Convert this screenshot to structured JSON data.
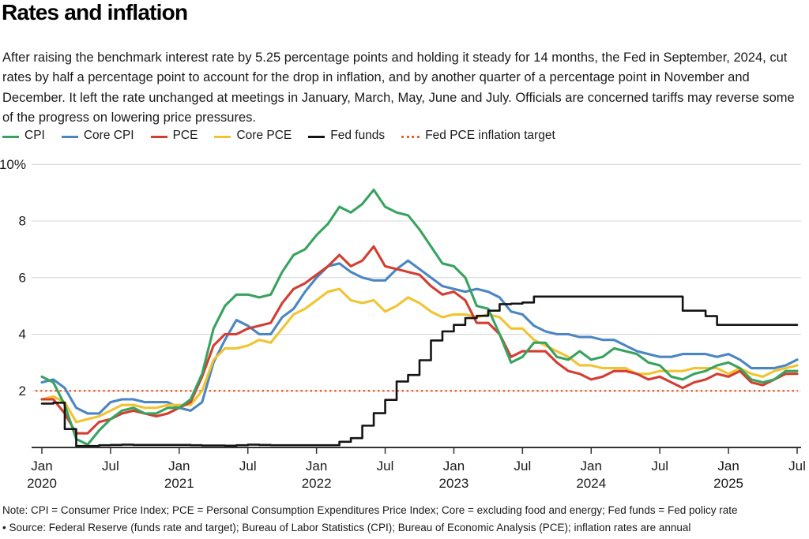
{
  "header": {
    "title": "Rates and inflation",
    "description": "After raising the benchmark interest rate by 5.25 percentage points and holding it steady for 14 months, the Fed in September, 2024, cut rates by half a percentage point to account for the drop in inflation, and by another quarter of a percentage point in November and December. It left the rate unchanged at meetings in January, March, May, June and July. Officials are concerned tariffs may reverse some of the progress on lowering price pressures."
  },
  "chart_data": {
    "type": "line",
    "x_unit": "month",
    "x_start": "Jan 2020",
    "x_end": "Jul 2025",
    "n_points": 67,
    "ylim": [
      0,
      10
    ],
    "grid": true,
    "legend_position": "top",
    "colors": {
      "grid": "#d4d4d4",
      "axis": "#1a1a1a",
      "tick_label": "#1a1a1a"
    },
    "y_ticks": [
      {
        "value": 10,
        "label": "10%"
      },
      {
        "value": 8,
        "label": "8"
      },
      {
        "value": 6,
        "label": "6"
      },
      {
        "value": 4,
        "label": "4"
      },
      {
        "value": 2,
        "label": "2"
      }
    ],
    "x_ticks": [
      {
        "index": 0,
        "month": "Jan",
        "year": "2020"
      },
      {
        "index": 6,
        "month": "Jul",
        "year": ""
      },
      {
        "index": 12,
        "month": "Jan",
        "year": "2021"
      },
      {
        "index": 18,
        "month": "Jul",
        "year": ""
      },
      {
        "index": 24,
        "month": "Jan",
        "year": "2022"
      },
      {
        "index": 30,
        "month": "Jul",
        "year": ""
      },
      {
        "index": 36,
        "month": "Jan",
        "year": "2023"
      },
      {
        "index": 42,
        "month": "Jul",
        "year": ""
      },
      {
        "index": 48,
        "month": "Jan",
        "year": "2024"
      },
      {
        "index": 54,
        "month": "Jul",
        "year": ""
      },
      {
        "index": 60,
        "month": "Jan",
        "year": "2025"
      },
      {
        "index": 66,
        "month": "Jul",
        "year": ""
      }
    ],
    "target_line": {
      "label": "Fed PCE inflation target",
      "value": 2,
      "color": "#e8622d",
      "style": "dotted"
    },
    "series": [
      {
        "name": "CPI",
        "color": "#37a35e",
        "style": "solid",
        "values": [
          2.5,
          2.3,
          1.5,
          0.3,
          0.1,
          0.6,
          1.0,
          1.3,
          1.4,
          1.2,
          1.2,
          1.4,
          1.4,
          1.7,
          2.6,
          4.2,
          5.0,
          5.4,
          5.4,
          5.3,
          5.4,
          6.2,
          6.8,
          7.0,
          7.5,
          7.9,
          8.5,
          8.3,
          8.6,
          9.1,
          8.5,
          8.3,
          8.2,
          7.7,
          7.1,
          6.5,
          6.4,
          6.0,
          5.0,
          4.9,
          4.0,
          3.0,
          3.2,
          3.7,
          3.7,
          3.2,
          3.1,
          3.4,
          3.1,
          3.2,
          3.5,
          3.4,
          3.3,
          3.0,
          2.9,
          2.5,
          2.4,
          2.6,
          2.7,
          2.9,
          3.0,
          2.8,
          2.4,
          2.3,
          2.4,
          2.7,
          2.7
        ]
      },
      {
        "name": "Core CPI",
        "color": "#4a86c4",
        "style": "solid",
        "values": [
          2.3,
          2.4,
          2.1,
          1.4,
          1.2,
          1.2,
          1.6,
          1.7,
          1.7,
          1.6,
          1.6,
          1.6,
          1.4,
          1.3,
          1.6,
          3.0,
          3.8,
          4.5,
          4.3,
          4.0,
          4.0,
          4.6,
          4.9,
          5.5,
          6.0,
          6.4,
          6.5,
          6.2,
          6.0,
          5.9,
          5.9,
          6.3,
          6.6,
          6.3,
          6.0,
          5.7,
          5.6,
          5.5,
          5.6,
          5.5,
          5.3,
          4.8,
          4.7,
          4.3,
          4.1,
          4.0,
          4.0,
          3.9,
          3.9,
          3.8,
          3.8,
          3.6,
          3.4,
          3.3,
          3.2,
          3.2,
          3.3,
          3.3,
          3.3,
          3.2,
          3.3,
          3.1,
          2.8,
          2.8,
          2.8,
          2.9,
          3.1
        ]
      },
      {
        "name": "PCE",
        "color": "#d43d30",
        "style": "solid",
        "values": [
          1.7,
          1.7,
          1.2,
          0.5,
          0.5,
          0.9,
          1.0,
          1.2,
          1.3,
          1.2,
          1.1,
          1.2,
          1.4,
          1.6,
          2.5,
          3.6,
          4.0,
          4.0,
          4.2,
          4.3,
          4.4,
          5.1,
          5.6,
          5.8,
          6.1,
          6.4,
          6.8,
          6.4,
          6.6,
          7.1,
          6.4,
          6.3,
          6.2,
          6.1,
          5.7,
          5.4,
          5.5,
          5.2,
          4.4,
          4.4,
          4.0,
          3.2,
          3.4,
          3.4,
          3.4,
          3.0,
          2.7,
          2.6,
          2.4,
          2.5,
          2.7,
          2.7,
          2.6,
          2.4,
          2.5,
          2.3,
          2.1,
          2.3,
          2.4,
          2.6,
          2.5,
          2.7,
          2.3,
          2.2,
          2.4,
          2.6,
          2.6
        ]
      },
      {
        "name": "Core PCE",
        "color": "#f2c331",
        "style": "solid",
        "values": [
          1.7,
          1.8,
          1.6,
          0.9,
          1.0,
          1.1,
          1.3,
          1.5,
          1.5,
          1.4,
          1.4,
          1.5,
          1.5,
          1.5,
          2.0,
          3.1,
          3.5,
          3.5,
          3.6,
          3.8,
          3.7,
          4.2,
          4.7,
          4.9,
          5.2,
          5.5,
          5.6,
          5.2,
          5.1,
          5.2,
          4.8,
          5.0,
          5.3,
          5.1,
          4.8,
          4.6,
          4.7,
          4.7,
          4.6,
          4.7,
          4.6,
          4.2,
          4.2,
          3.8,
          3.6,
          3.4,
          3.2,
          2.9,
          2.9,
          2.8,
          2.8,
          2.8,
          2.6,
          2.6,
          2.7,
          2.7,
          2.7,
          2.8,
          2.8,
          2.8,
          2.6,
          2.8,
          2.6,
          2.5,
          2.7,
          2.8,
          2.9
        ]
      },
      {
        "name": "Fed funds",
        "color": "#141414",
        "style": "step",
        "values": [
          1.55,
          1.58,
          0.65,
          0.05,
          0.05,
          0.08,
          0.09,
          0.1,
          0.09,
          0.09,
          0.09,
          0.09,
          0.09,
          0.08,
          0.07,
          0.07,
          0.06,
          0.08,
          0.1,
          0.09,
          0.08,
          0.08,
          0.08,
          0.08,
          0.08,
          0.08,
          0.2,
          0.33,
          0.77,
          1.21,
          1.68,
          2.33,
          2.56,
          3.08,
          3.78,
          4.1,
          4.33,
          4.57,
          4.65,
          4.83,
          5.06,
          5.08,
          5.12,
          5.33,
          5.33,
          5.33,
          5.33,
          5.33,
          5.33,
          5.33,
          5.33,
          5.33,
          5.33,
          5.33,
          5.33,
          5.33,
          4.83,
          4.83,
          4.64,
          4.33,
          4.33,
          4.33,
          4.33,
          4.33,
          4.33,
          4.33,
          4.33
        ]
      }
    ]
  },
  "footer": {
    "note": "Note: CPI = Consumer Price Index; PCE = Personal Consumption Expenditures Price Index; Core = excluding food and energy; Fed funds = Fed policy rate",
    "source": "• Source: Federal Reserve (funds rate and target); Bureau of Labor Statistics (CPI); Bureau of Economic Analysis (PCE); inflation rates are annual"
  }
}
